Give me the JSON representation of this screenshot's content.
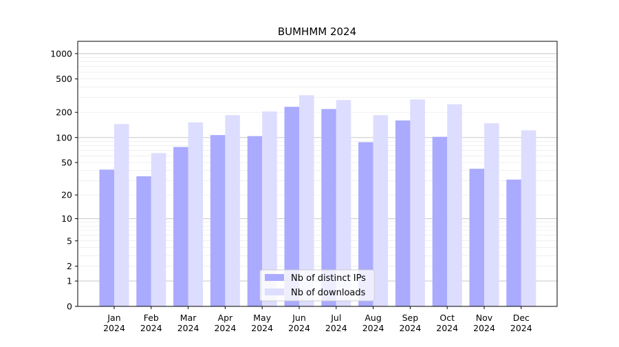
{
  "chart_data": {
    "type": "bar",
    "title": "BUMHMM 2024",
    "xlabel": "",
    "ylabel": "",
    "y_scale": "log(1+y)",
    "ylim": [
      0,
      1400
    ],
    "grid": "horizontal",
    "legend_position": "bottom-center",
    "y_ticks": [
      0,
      1,
      2,
      5,
      10,
      20,
      50,
      100,
      200,
      500,
      1000
    ],
    "categories": [
      "Jan\n2024",
      "Feb\n2024",
      "Mar\n2024",
      "Apr\n2024",
      "May\n2024",
      "Jun\n2024",
      "Jul\n2024",
      "Aug\n2024",
      "Sep\n2024",
      "Oct\n2024",
      "Nov\n2024",
      "Dec\n2024"
    ],
    "series": [
      {
        "name": "Nb of distinct IPs",
        "color": "#aaaaff",
        "values": [
          41,
          34,
          77,
          107,
          104,
          233,
          219,
          88,
          160,
          102,
          42,
          31
        ]
      },
      {
        "name": "Nb of downloads",
        "color": "#ddddff",
        "values": [
          145,
          65,
          152,
          185,
          205,
          320,
          280,
          185,
          285,
          250,
          148,
          122
        ]
      }
    ]
  }
}
